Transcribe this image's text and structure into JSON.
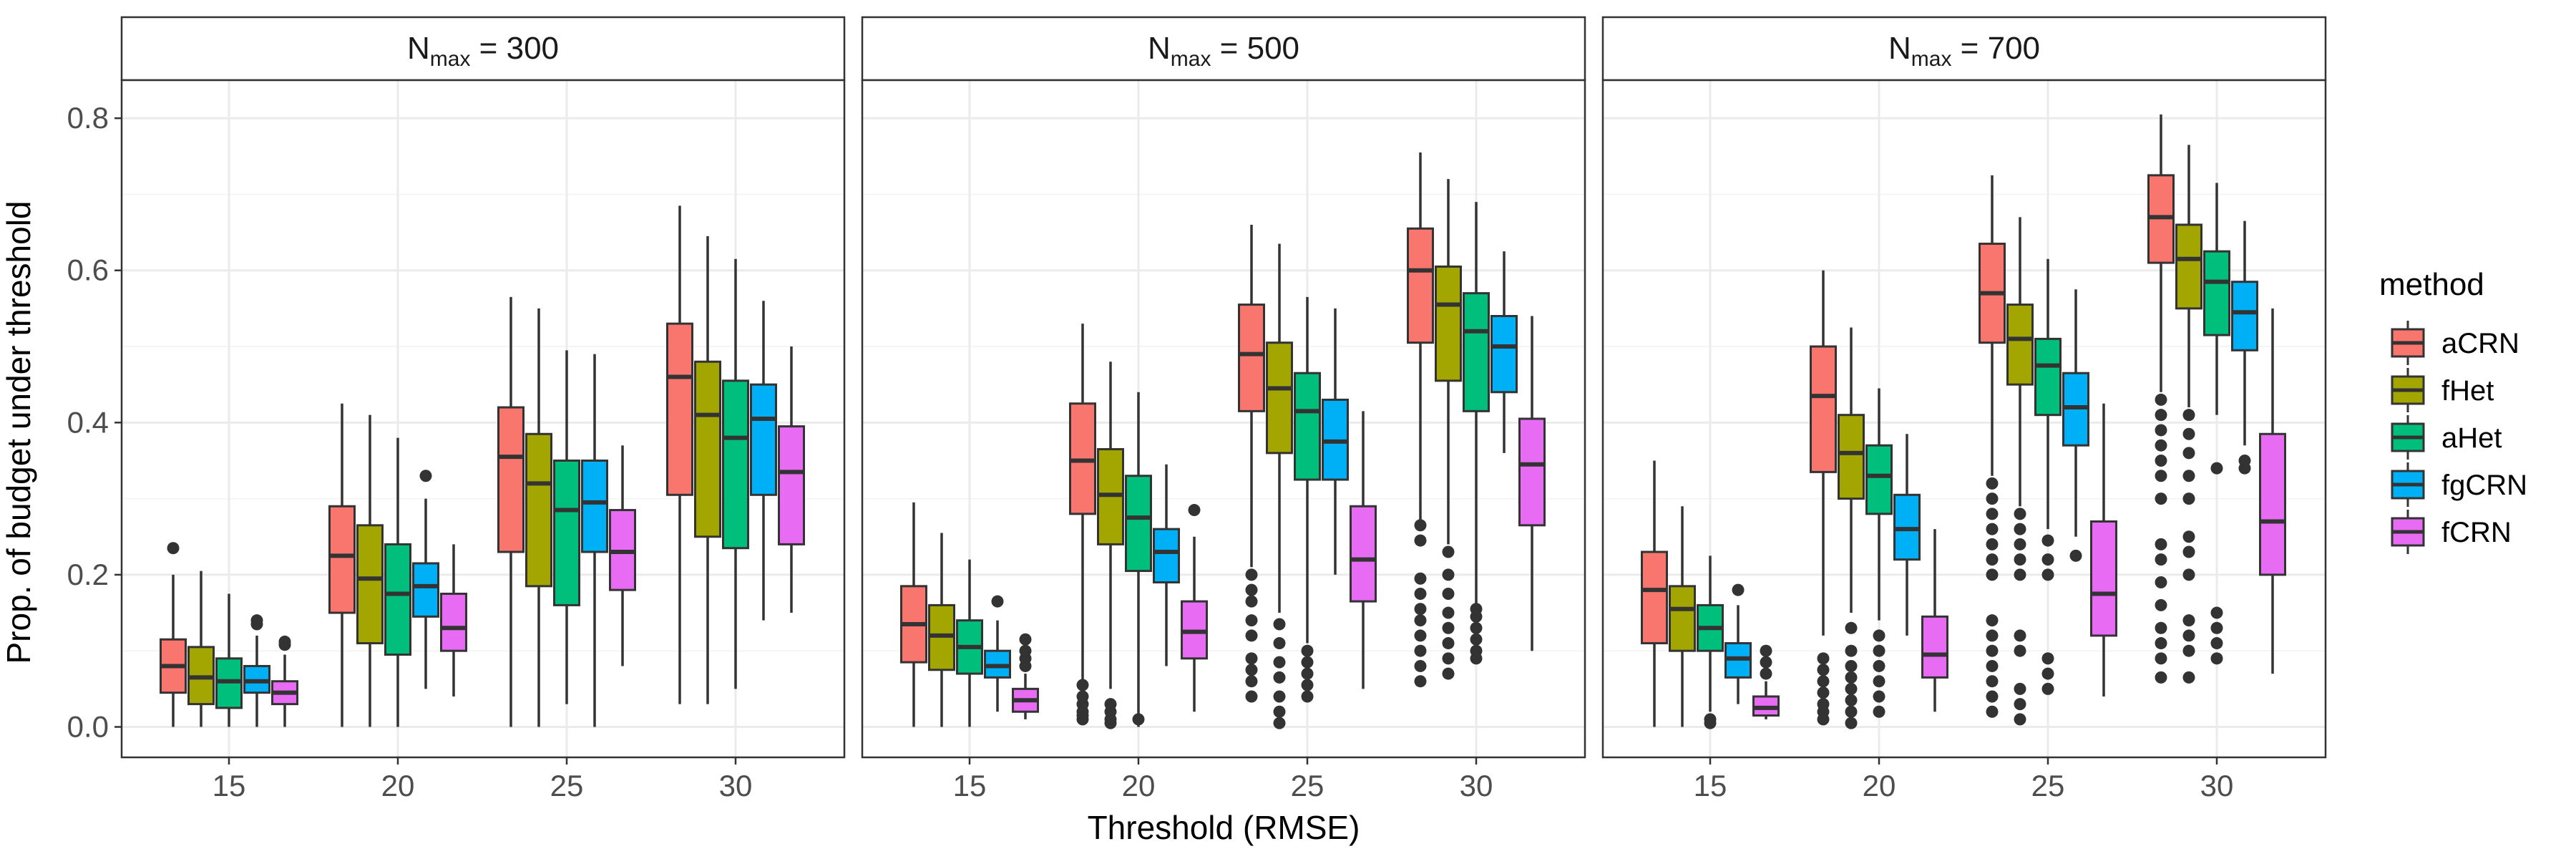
{
  "chart_data": {
    "type": "boxplot",
    "xlabel": "Threshold (RMSE)",
    "ylabel": "Prop. of budget under threshold",
    "ylim": [
      -0.04,
      0.85
    ],
    "yticks": [
      "0.0",
      "0.2",
      "0.4",
      "0.6",
      "0.8"
    ],
    "grid": true,
    "categories": [
      "15",
      "20",
      "25",
      "30"
    ],
    "legend": {
      "title": "method",
      "position": "right",
      "items": [
        {
          "name": "aCRN",
          "color": "#F8766D"
        },
        {
          "name": "fHet",
          "color": "#A3A500"
        },
        {
          "name": "aHet",
          "color": "#00BF7D"
        },
        {
          "name": "fgCRN",
          "color": "#00B0F6"
        },
        {
          "name": "fCRN",
          "color": "#E76BF3"
        }
      ]
    },
    "facets": [
      {
        "strip": {
          "base": "N",
          "sub": "max",
          "rest": " = 300"
        },
        "groups": [
          {
            "threshold": "15",
            "boxes": [
              {
                "min": 0.0,
                "q1": 0.045,
                "median": 0.08,
                "q3": 0.115,
                "max": 0.2,
                "outliers": [
                  0.235
                ]
              },
              {
                "min": 0.0,
                "q1": 0.03,
                "median": 0.065,
                "q3": 0.105,
                "max": 0.205,
                "outliers": []
              },
              {
                "min": 0.0,
                "q1": 0.025,
                "median": 0.06,
                "q3": 0.09,
                "max": 0.175,
                "outliers": []
              },
              {
                "min": 0.0,
                "q1": 0.045,
                "median": 0.06,
                "q3": 0.08,
                "max": 0.12,
                "outliers": [
                  0.135,
                  0.14
                ]
              },
              {
                "min": 0.0,
                "q1": 0.03,
                "median": 0.045,
                "q3": 0.06,
                "max": 0.095,
                "outliers": [
                  0.108,
                  0.112
                ]
              }
            ]
          },
          {
            "threshold": "20",
            "boxes": [
              {
                "min": 0.0,
                "q1": 0.15,
                "median": 0.225,
                "q3": 0.29,
                "max": 0.425,
                "outliers": []
              },
              {
                "min": 0.0,
                "q1": 0.11,
                "median": 0.195,
                "q3": 0.265,
                "max": 0.41,
                "outliers": []
              },
              {
                "min": 0.0,
                "q1": 0.095,
                "median": 0.175,
                "q3": 0.24,
                "max": 0.38,
                "outliers": []
              },
              {
                "min": 0.05,
                "q1": 0.145,
                "median": 0.185,
                "q3": 0.215,
                "max": 0.3,
                "outliers": [
                  0.33
                ]
              },
              {
                "min": 0.04,
                "q1": 0.1,
                "median": 0.13,
                "q3": 0.175,
                "max": 0.24,
                "outliers": []
              }
            ]
          },
          {
            "threshold": "25",
            "boxes": [
              {
                "min": 0.0,
                "q1": 0.23,
                "median": 0.355,
                "q3": 0.42,
                "max": 0.565,
                "outliers": []
              },
              {
                "min": 0.0,
                "q1": 0.185,
                "median": 0.32,
                "q3": 0.385,
                "max": 0.55,
                "outliers": []
              },
              {
                "min": 0.03,
                "q1": 0.16,
                "median": 0.285,
                "q3": 0.35,
                "max": 0.495,
                "outliers": []
              },
              {
                "min": 0.0,
                "q1": 0.23,
                "median": 0.295,
                "q3": 0.35,
                "max": 0.49,
                "outliers": []
              },
              {
                "min": 0.08,
                "q1": 0.18,
                "median": 0.23,
                "q3": 0.285,
                "max": 0.37,
                "outliers": []
              }
            ]
          },
          {
            "threshold": "30",
            "boxes": [
              {
                "min": 0.03,
                "q1": 0.305,
                "median": 0.46,
                "q3": 0.53,
                "max": 0.685,
                "outliers": []
              },
              {
                "min": 0.03,
                "q1": 0.25,
                "median": 0.41,
                "q3": 0.48,
                "max": 0.645,
                "outliers": []
              },
              {
                "min": 0.05,
                "q1": 0.235,
                "median": 0.38,
                "q3": 0.455,
                "max": 0.615,
                "outliers": []
              },
              {
                "min": 0.14,
                "q1": 0.305,
                "median": 0.405,
                "q3": 0.45,
                "max": 0.56,
                "outliers": []
              },
              {
                "min": 0.15,
                "q1": 0.24,
                "median": 0.335,
                "q3": 0.395,
                "max": 0.5,
                "outliers": []
              }
            ]
          }
        ]
      },
      {
        "strip": {
          "base": "N",
          "sub": "max",
          "rest": " = 500"
        },
        "groups": [
          {
            "threshold": "15",
            "boxes": [
              {
                "min": 0.0,
                "q1": 0.085,
                "median": 0.135,
                "q3": 0.185,
                "max": 0.295,
                "outliers": []
              },
              {
                "min": 0.0,
                "q1": 0.075,
                "median": 0.12,
                "q3": 0.16,
                "max": 0.255,
                "outliers": []
              },
              {
                "min": 0.0,
                "q1": 0.07,
                "median": 0.105,
                "q3": 0.14,
                "max": 0.22,
                "outliers": []
              },
              {
                "min": 0.02,
                "q1": 0.065,
                "median": 0.08,
                "q3": 0.1,
                "max": 0.14,
                "outliers": [
                  0.165
                ]
              },
              {
                "min": 0.01,
                "q1": 0.02,
                "median": 0.035,
                "q3": 0.05,
                "max": 0.07,
                "outliers": [
                  0.08,
                  0.09,
                  0.1,
                  0.115
                ]
              }
            ]
          },
          {
            "threshold": "20",
            "boxes": [
              {
                "min": 0.06,
                "q1": 0.28,
                "median": 0.35,
                "q3": 0.425,
                "max": 0.53,
                "outliers": [
                  0.01,
                  0.015,
                  0.02,
                  0.03,
                  0.04,
                  0.055
                ]
              },
              {
                "min": 0.05,
                "q1": 0.24,
                "median": 0.305,
                "q3": 0.365,
                "max": 0.48,
                "outliers": [
                  0.005,
                  0.01,
                  0.02,
                  0.03
                ]
              },
              {
                "min": 0.0,
                "q1": 0.205,
                "median": 0.275,
                "q3": 0.33,
                "max": 0.44,
                "outliers": [
                  0.01
                ]
              },
              {
                "min": 0.08,
                "q1": 0.19,
                "median": 0.23,
                "q3": 0.26,
                "max": 0.345,
                "outliers": []
              },
              {
                "min": 0.02,
                "q1": 0.09,
                "median": 0.125,
                "q3": 0.165,
                "max": 0.25,
                "outliers": [
                  0.285
                ]
              }
            ]
          },
          {
            "threshold": "25",
            "boxes": [
              {
                "min": 0.21,
                "q1": 0.415,
                "median": 0.49,
                "q3": 0.555,
                "max": 0.66,
                "outliers": [
                  0.04,
                  0.06,
                  0.075,
                  0.09,
                  0.12,
                  0.14,
                  0.165,
                  0.18,
                  0.2
                ]
              },
              {
                "min": 0.15,
                "q1": 0.36,
                "median": 0.445,
                "q3": 0.505,
                "max": 0.635,
                "outliers": [
                  0.005,
                  0.02,
                  0.04,
                  0.065,
                  0.085,
                  0.11,
                  0.135
                ]
              },
              {
                "min": 0.11,
                "q1": 0.325,
                "median": 0.415,
                "q3": 0.465,
                "max": 0.565,
                "outliers": [
                  0.04,
                  0.055,
                  0.07,
                  0.085,
                  0.1
                ]
              },
              {
                "min": 0.2,
                "q1": 0.325,
                "median": 0.375,
                "q3": 0.43,
                "max": 0.55,
                "outliers": []
              },
              {
                "min": 0.05,
                "q1": 0.165,
                "median": 0.22,
                "q3": 0.29,
                "max": 0.415,
                "outliers": []
              }
            ]
          },
          {
            "threshold": "30",
            "boxes": [
              {
                "min": 0.27,
                "q1": 0.505,
                "median": 0.6,
                "q3": 0.655,
                "max": 0.755,
                "outliers": [
                  0.06,
                  0.08,
                  0.1,
                  0.12,
                  0.14,
                  0.155,
                  0.175,
                  0.195,
                  0.245,
                  0.265
                ]
              },
              {
                "min": 0.24,
                "q1": 0.455,
                "median": 0.555,
                "q3": 0.605,
                "max": 0.72,
                "outliers": [
                  0.07,
                  0.09,
                  0.11,
                  0.13,
                  0.15,
                  0.175,
                  0.2,
                  0.23
                ]
              },
              {
                "min": 0.16,
                "q1": 0.415,
                "median": 0.52,
                "q3": 0.57,
                "max": 0.69,
                "outliers": [
                  0.09,
                  0.1,
                  0.115,
                  0.13,
                  0.145,
                  0.155
                ]
              },
              {
                "min": 0.36,
                "q1": 0.44,
                "median": 0.5,
                "q3": 0.54,
                "max": 0.625,
                "outliers": []
              },
              {
                "min": 0.1,
                "q1": 0.265,
                "median": 0.345,
                "q3": 0.405,
                "max": 0.54,
                "outliers": []
              }
            ]
          }
        ]
      },
      {
        "strip": {
          "base": "N",
          "sub": "max",
          "rest": " = 700"
        },
        "groups": [
          {
            "threshold": "15",
            "boxes": [
              {
                "min": 0.0,
                "q1": 0.11,
                "median": 0.18,
                "q3": 0.23,
                "max": 0.35,
                "outliers": []
              },
              {
                "min": 0.0,
                "q1": 0.1,
                "median": 0.155,
                "q3": 0.185,
                "max": 0.29,
                "outliers": []
              },
              {
                "min": 0.02,
                "q1": 0.1,
                "median": 0.13,
                "q3": 0.16,
                "max": 0.225,
                "outliers": [
                  0.005,
                  0.01
                ]
              },
              {
                "min": 0.03,
                "q1": 0.065,
                "median": 0.09,
                "q3": 0.11,
                "max": 0.16,
                "outliers": [
                  0.18
                ]
              },
              {
                "min": 0.01,
                "q1": 0.015,
                "median": 0.025,
                "q3": 0.04,
                "max": 0.06,
                "outliers": [
                  0.07,
                  0.085,
                  0.1
                ]
              }
            ]
          },
          {
            "threshold": "20",
            "boxes": [
              {
                "min": 0.12,
                "q1": 0.335,
                "median": 0.435,
                "q3": 0.5,
                "max": 0.6,
                "outliers": [
                  0.01,
                  0.02,
                  0.03,
                  0.045,
                  0.06,
                  0.075,
                  0.09
                ]
              },
              {
                "min": 0.15,
                "q1": 0.3,
                "median": 0.36,
                "q3": 0.41,
                "max": 0.525,
                "outliers": [
                  0.005,
                  0.02,
                  0.035,
                  0.05,
                  0.065,
                  0.08,
                  0.1,
                  0.13
                ]
              },
              {
                "min": 0.14,
                "q1": 0.28,
                "median": 0.33,
                "q3": 0.37,
                "max": 0.445,
                "outliers": [
                  0.02,
                  0.04,
                  0.06,
                  0.08,
                  0.1,
                  0.12
                ]
              },
              {
                "min": 0.12,
                "q1": 0.22,
                "median": 0.26,
                "q3": 0.305,
                "max": 0.385,
                "outliers": []
              },
              {
                "min": 0.02,
                "q1": 0.065,
                "median": 0.095,
                "q3": 0.145,
                "max": 0.26,
                "outliers": []
              }
            ]
          },
          {
            "threshold": "25",
            "boxes": [
              {
                "min": 0.33,
                "q1": 0.505,
                "median": 0.57,
                "q3": 0.635,
                "max": 0.725,
                "outliers": [
                  0.02,
                  0.04,
                  0.06,
                  0.08,
                  0.1,
                  0.12,
                  0.14,
                  0.2,
                  0.22,
                  0.24,
                  0.26,
                  0.28,
                  0.3,
                  0.32
                ]
              },
              {
                "min": 0.29,
                "q1": 0.45,
                "median": 0.51,
                "q3": 0.555,
                "max": 0.67,
                "outliers": [
                  0.01,
                  0.03,
                  0.05,
                  0.1,
                  0.12,
                  0.2,
                  0.22,
                  0.24,
                  0.26,
                  0.28
                ]
              },
              {
                "min": 0.26,
                "q1": 0.41,
                "median": 0.475,
                "q3": 0.51,
                "max": 0.615,
                "outliers": [
                  0.05,
                  0.07,
                  0.09,
                  0.2,
                  0.22,
                  0.245
                ]
              },
              {
                "min": 0.25,
                "q1": 0.37,
                "median": 0.42,
                "q3": 0.465,
                "max": 0.575,
                "outliers": [
                  0.225
                ]
              },
              {
                "min": 0.04,
                "q1": 0.12,
                "median": 0.175,
                "q3": 0.27,
                "max": 0.425,
                "outliers": []
              }
            ]
          },
          {
            "threshold": "30",
            "boxes": [
              {
                "min": 0.44,
                "q1": 0.61,
                "median": 0.67,
                "q3": 0.725,
                "max": 0.805,
                "outliers": [
                  0.065,
                  0.09,
                  0.11,
                  0.13,
                  0.16,
                  0.19,
                  0.22,
                  0.24,
                  0.3,
                  0.33,
                  0.35,
                  0.37,
                  0.39,
                  0.41,
                  0.43
                ]
              },
              {
                "min": 0.42,
                "q1": 0.55,
                "median": 0.615,
                "q3": 0.66,
                "max": 0.765,
                "outliers": [
                  0.065,
                  0.1,
                  0.12,
                  0.14,
                  0.2,
                  0.23,
                  0.25,
                  0.3,
                  0.33,
                  0.36,
                  0.385,
                  0.41
                ]
              },
              {
                "min": 0.41,
                "q1": 0.515,
                "median": 0.585,
                "q3": 0.625,
                "max": 0.715,
                "outliers": [
                  0.09,
                  0.11,
                  0.13,
                  0.15,
                  0.34
                ]
              },
              {
                "min": 0.37,
                "q1": 0.495,
                "median": 0.545,
                "q3": 0.585,
                "max": 0.665,
                "outliers": [
                  0.34,
                  0.35
                ]
              },
              {
                "min": 0.07,
                "q1": 0.2,
                "median": 0.27,
                "q3": 0.385,
                "max": 0.55,
                "outliers": []
              }
            ]
          }
        ]
      }
    ]
  }
}
